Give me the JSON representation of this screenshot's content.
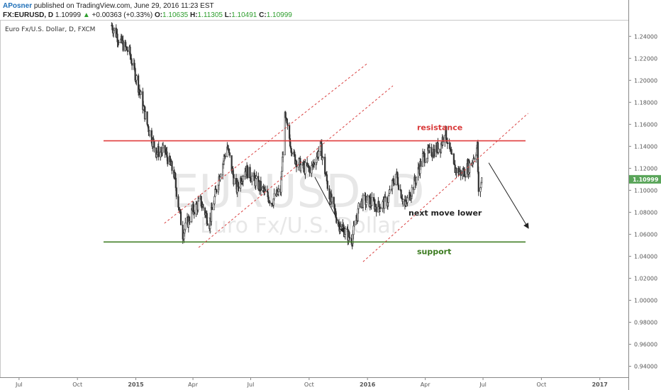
{
  "header": {
    "author": "APosner",
    "published": "published on TradingView.com, June 29, 2016 11:23 EST",
    "symbol": "FX:EURUSD, D",
    "last": "1.10999",
    "up_arrow": "▲",
    "change": "+0.00363 (+0.33%)",
    "open_label": "O:",
    "open": "1.10635",
    "high_label": "H:",
    "high": "1.11305",
    "low_label": "L:",
    "low": "1.10491",
    "close_label": "C:",
    "close": "1.10999"
  },
  "chart_data": {
    "type": "candlestick",
    "title": "Euro Fx/U.S. Dollar, D, FXCM",
    "watermark": "EURUSD, D",
    "watermark_sub": "Euro Fx/U.S. Dollar",
    "ylim": [
      0.93,
      1.255
    ],
    "yticks": [
      "1.24000",
      "1.22000",
      "1.20000",
      "1.18000",
      "1.16000",
      "1.14000",
      "1.12000",
      "1.10000",
      "1.08000",
      "1.06000",
      "1.04000",
      "1.02000",
      "1.00000",
      "0.98000",
      "0.96000",
      "0.94000"
    ],
    "xticks": [
      "Jul",
      "Oct",
      "2015",
      "Apr",
      "Jul",
      "Oct",
      "2016",
      "Apr",
      "Jul",
      "Oct",
      "2017"
    ],
    "last_price": "1.10999",
    "colors": {
      "resistance": "#e03c3c",
      "support": "#3a7a1e",
      "channel": "#d94040",
      "candle": "#333333",
      "last_price_tag": "#5aa55a"
    },
    "levels": [
      {
        "name": "resistance",
        "value": 1.145
      },
      {
        "name": "support",
        "value": 1.053
      }
    ],
    "annotations": [
      "resistance",
      "support",
      "next move lower"
    ],
    "price_path": [
      {
        "date": "2014-11-24",
        "close": 1.25
      },
      {
        "date": "2014-12-08",
        "close": 1.235
      },
      {
        "date": "2014-12-22",
        "close": 1.225
      },
      {
        "date": "2015-01-05",
        "close": 1.195
      },
      {
        "date": "2015-01-19",
        "close": 1.16
      },
      {
        "date": "2015-02-02",
        "close": 1.135
      },
      {
        "date": "2015-02-16",
        "close": 1.135
      },
      {
        "date": "2015-03-02",
        "close": 1.115
      },
      {
        "date": "2015-03-16",
        "close": 1.06
      },
      {
        "date": "2015-03-30",
        "close": 1.08
      },
      {
        "date": "2015-04-13",
        "close": 1.09
      },
      {
        "date": "2015-04-27",
        "close": 1.07
      },
      {
        "date": "2015-05-11",
        "close": 1.11
      },
      {
        "date": "2015-05-25",
        "close": 1.14
      },
      {
        "date": "2015-06-08",
        "close": 1.1
      },
      {
        "date": "2015-06-22",
        "close": 1.12
      },
      {
        "date": "2015-07-06",
        "close": 1.11
      },
      {
        "date": "2015-07-20",
        "close": 1.1
      },
      {
        "date": "2015-08-03",
        "close": 1.09
      },
      {
        "date": "2015-08-17",
        "close": 1.1
      },
      {
        "date": "2015-08-24",
        "close": 1.165
      },
      {
        "date": "2015-09-07",
        "close": 1.13
      },
      {
        "date": "2015-09-21",
        "close": 1.12
      },
      {
        "date": "2015-10-05",
        "close": 1.12
      },
      {
        "date": "2015-10-19",
        "close": 1.14
      },
      {
        "date": "2015-11-02",
        "close": 1.095
      },
      {
        "date": "2015-11-16",
        "close": 1.07
      },
      {
        "date": "2015-11-30",
        "close": 1.06
      },
      {
        "date": "2015-12-07",
        "close": 1.055
      },
      {
        "date": "2015-12-21",
        "close": 1.09
      },
      {
        "date": "2016-01-04",
        "close": 1.09
      },
      {
        "date": "2016-01-18",
        "close": 1.085
      },
      {
        "date": "2016-02-01",
        "close": 1.09
      },
      {
        "date": "2016-02-15",
        "close": 1.115
      },
      {
        "date": "2016-02-29",
        "close": 1.085
      },
      {
        "date": "2016-03-14",
        "close": 1.105
      },
      {
        "date": "2016-03-28",
        "close": 1.13
      },
      {
        "date": "2016-04-11",
        "close": 1.135
      },
      {
        "date": "2016-04-25",
        "close": 1.14
      },
      {
        "date": "2016-05-02",
        "close": 1.155
      },
      {
        "date": "2016-05-16",
        "close": 1.12
      },
      {
        "date": "2016-05-30",
        "close": 1.115
      },
      {
        "date": "2016-06-13",
        "close": 1.125
      },
      {
        "date": "2016-06-22",
        "close": 1.14
      },
      {
        "date": "2016-06-24",
        "close": 1.095
      },
      {
        "date": "2016-06-29",
        "close": 1.11
      }
    ]
  }
}
